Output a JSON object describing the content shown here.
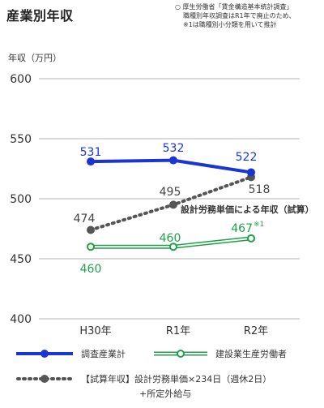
{
  "page": {
    "title": "産業別年収",
    "note": {
      "bullet": "○",
      "line1": "厚生労働省「賃金構造基本統計調査」",
      "line2": "職種別年収調査はR1年で廃止のため、",
      "line3": "※1は職種別小分類を用いて推計"
    }
  },
  "chart_data": {
    "type": "line",
    "ylabel": "年収（万円）",
    "ylim": [
      400,
      600
    ],
    "yticks": [
      400,
      450,
      500,
      550,
      600
    ],
    "grid": true,
    "categories": [
      "H30年",
      "R1年",
      "R2年"
    ],
    "series": [
      {
        "name": "調査産業計",
        "values": [
          531,
          532,
          522
        ],
        "labels": [
          "531",
          "532",
          "522"
        ],
        "color": "#1a35d6",
        "style": "solid-bold"
      },
      {
        "name": "建設業生産労働者",
        "values": [
          460,
          460,
          467
        ],
        "labels": [
          "460",
          "460",
          "467※1"
        ],
        "color": "#1fa14a",
        "style": "double"
      },
      {
        "name": "【試算年収】設計労務単価×234日（週休2日）+所定外給与",
        "values": [
          474,
          495,
          518
        ],
        "labels": [
          "474",
          "495",
          "518"
        ],
        "color": "#555555",
        "style": "dotted"
      }
    ],
    "annotation": "設計労務単価による年収（試算）",
    "legend": [
      {
        "label": "調査産業計",
        "series": 0
      },
      {
        "label": "建設業生産労働者",
        "series": 1
      },
      {
        "label": "【試算年収】設計労務単価×234日（週休2日）",
        "label2": "+所定外給与",
        "series": 2
      }
    ]
  }
}
